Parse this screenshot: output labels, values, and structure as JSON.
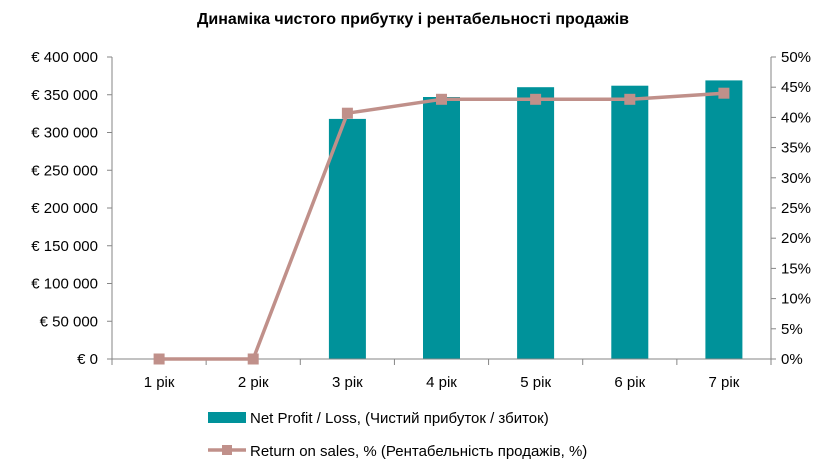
{
  "chart_data": {
    "type": "bar",
    "title": "Динаміка чистого прибутку і рентабельності продажів",
    "categories": [
      "1 рік",
      "2 рік",
      "3 рік",
      "4 рік",
      "5 рік",
      "6 рік",
      "7 рік"
    ],
    "series": [
      {
        "name": "Net Profit / Loss, (Чистий прибуток / збиток)",
        "type": "bar",
        "axis": "left",
        "color": "#00929A",
        "values": [
          0,
          0,
          318000,
          347000,
          360000,
          362000,
          369000
        ]
      },
      {
        "name": "Return on sales, % (Рентабельність продажів, %)",
        "type": "line",
        "axis": "right",
        "color": "#C0908A",
        "marker": "square",
        "values": [
          0,
          0,
          40.7,
          43.0,
          43.0,
          43.0,
          44.0
        ]
      }
    ],
    "y_left": {
      "min": 0,
      "max": 400000,
      "ticks": [
        {
          "value": 0,
          "label": "€ 0"
        },
        {
          "value": 50000,
          "label": "€ 50 000"
        },
        {
          "value": 100000,
          "label": "€ 100 000"
        },
        {
          "value": 150000,
          "label": "€ 150 000"
        },
        {
          "value": 200000,
          "label": "€ 200 000"
        },
        {
          "value": 250000,
          "label": "€ 250 000"
        },
        {
          "value": 300000,
          "label": "€ 300 000"
        },
        {
          "value": 350000,
          "label": "€ 350 000"
        },
        {
          "value": 400000,
          "label": "€ 400 000"
        }
      ]
    },
    "y_right": {
      "min": 0,
      "max": 50,
      "ticks": [
        {
          "value": 0,
          "label": "0%"
        },
        {
          "value": 5,
          "label": "5%"
        },
        {
          "value": 10,
          "label": "10%"
        },
        {
          "value": 15,
          "label": "15%"
        },
        {
          "value": 20,
          "label": "20%"
        },
        {
          "value": 25,
          "label": "25%"
        },
        {
          "value": 30,
          "label": "30%"
        },
        {
          "value": 35,
          "label": "35%"
        },
        {
          "value": 40,
          "label": "40%"
        },
        {
          "value": 45,
          "label": "45%"
        },
        {
          "value": 50,
          "label": "50%"
        }
      ]
    },
    "grid": false,
    "legend_position": "bottom"
  }
}
